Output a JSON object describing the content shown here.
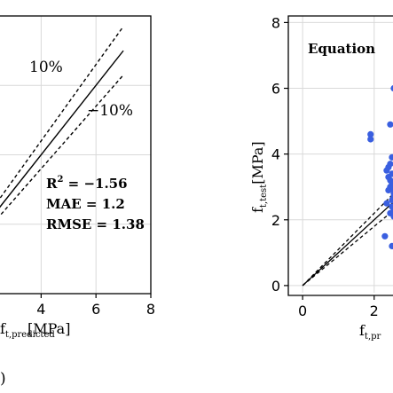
{
  "chart_data": [
    {
      "type": "line",
      "xlabel_main": "f",
      "xlabel_sub": "t,predicted",
      "xlabel_unit": "[MPa]",
      "xticks": [
        4,
        6,
        8
      ],
      "xlim": [
        2.5,
        8
      ],
      "ylim": [
        0,
        8
      ],
      "grid": true,
      "annotations": {
        "upper_band": "10%",
        "lower_band": "−10%",
        "r2_label": "R",
        "r2_sup": "2",
        "r2_value": " = −1.56",
        "mae": "MAE = 1.2",
        "rmse": "RMSE = 1.38"
      },
      "panel_label": ")",
      "series": [
        {
          "role": "identity",
          "x": [
            0,
            7
          ],
          "y": [
            0,
            7
          ],
          "style": "solid"
        },
        {
          "role": "upper",
          "x": [
            0,
            7
          ],
          "y": [
            0,
            7.7
          ],
          "style": "dashed"
        },
        {
          "role": "lower",
          "x": [
            0,
            7
          ],
          "y": [
            0,
            6.3
          ],
          "style": "dashed"
        }
      ]
    },
    {
      "type": "scatter",
      "title": "Equation",
      "xlabel_main": "f",
      "xlabel_sub": "t,pr",
      "ylabel_main": "f",
      "ylabel_sub": "t,test",
      "ylabel_unit": "[MPa]",
      "xticks": [
        0,
        2
      ],
      "yticks": [
        0,
        2,
        4,
        6,
        8
      ],
      "xlim": [
        -0.4,
        2.7
      ],
      "ylim": [
        -0.3,
        8.2
      ],
      "grid": true,
      "point_color": "#3a5fe0",
      "points": {
        "x": [
          1.9,
          1.9,
          2.3,
          2.35,
          2.4,
          2.45,
          2.5,
          2.4,
          2.45,
          2.5,
          2.45,
          2.5,
          2.4,
          2.55,
          2.5,
          2.35,
          2.5,
          2.55,
          2.45,
          2.55,
          2.5,
          2.55,
          2.45,
          2.5,
          2.55
        ],
        "y": [
          4.6,
          4.45,
          1.5,
          3.5,
          3.6,
          3.7,
          3.9,
          3.3,
          3.2,
          3.1,
          3.0,
          2.95,
          2.9,
          2.8,
          2.6,
          2.5,
          2.4,
          2.3,
          2.2,
          2.1,
          1.2,
          6.0,
          4.9,
          3.4,
          2.7
        ]
      },
      "series": [
        {
          "role": "identity",
          "x": [
            0,
            2.7
          ],
          "y": [
            0,
            2.7
          ],
          "style": "solid"
        },
        {
          "role": "upper",
          "x": [
            0,
            2.7
          ],
          "y": [
            0,
            2.97
          ],
          "style": "dashed"
        },
        {
          "role": "lower",
          "x": [
            0,
            2.7
          ],
          "y": [
            0,
            2.43
          ],
          "style": "dashed"
        }
      ]
    }
  ]
}
